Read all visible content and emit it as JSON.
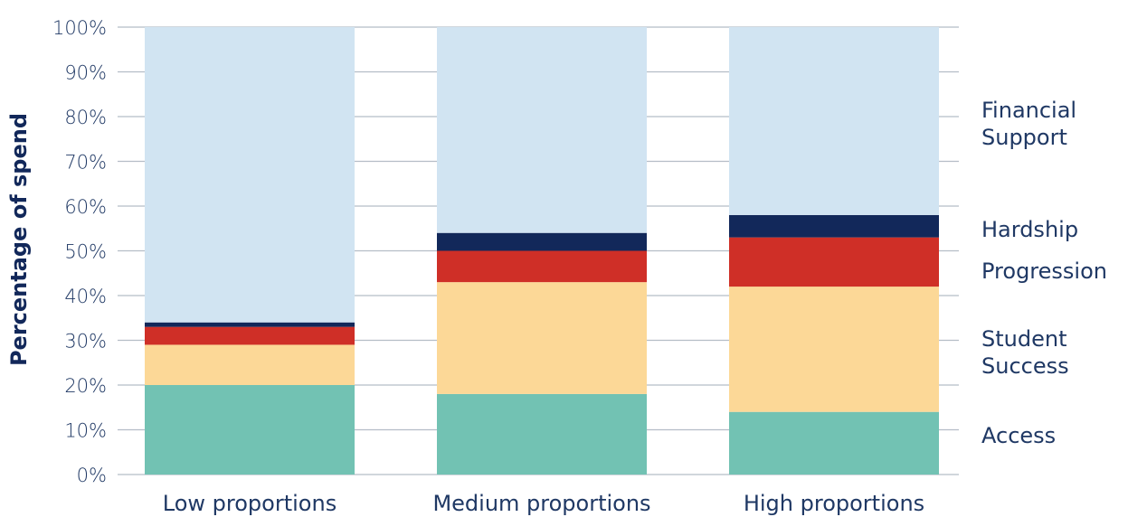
{
  "chart_data": {
    "type": "bar",
    "stacked": true,
    "categories": [
      "Low proportions",
      "Medium proportions",
      "High proportions"
    ],
    "series": [
      {
        "name": "Access",
        "values": [
          20,
          18,
          14
        ],
        "color": "#72c2b3"
      },
      {
        "name": "Student Success",
        "values": [
          9,
          25,
          28
        ],
        "color": "#fcd897"
      },
      {
        "name": "Progression",
        "values": [
          4,
          7,
          11
        ],
        "color": "#cf2f27"
      },
      {
        "name": "Hardship",
        "values": [
          1,
          4,
          5
        ],
        "color": "#12285a"
      },
      {
        "name": "Financial Support",
        "values": [
          66,
          46,
          42
        ],
        "color": "#d1e4f2"
      }
    ],
    "legend_labels": [
      {
        "series": "Financial Support",
        "lines": [
          "Financial",
          "Support"
        ]
      },
      {
        "series": "Hardship",
        "lines": [
          "Hardship"
        ]
      },
      {
        "series": "Progression",
        "lines": [
          "Progression"
        ]
      },
      {
        "series": "Student Success",
        "lines": [
          "Student",
          "Success"
        ]
      },
      {
        "series": "Access",
        "lines": [
          "Access"
        ]
      }
    ],
    "ylabel": "Percentage of spend",
    "xlabel": "",
    "title": "",
    "ylim": [
      0,
      100
    ],
    "yticks": [
      0,
      10,
      20,
      30,
      40,
      50,
      60,
      70,
      80,
      90,
      100
    ],
    "ytick_suffix": "%",
    "grid": true,
    "legend_position": "right, labels beside the stacks",
    "colors": {
      "text": "#1f3864",
      "axis_title": "#12285a",
      "grid": "#b5bdc7"
    }
  }
}
